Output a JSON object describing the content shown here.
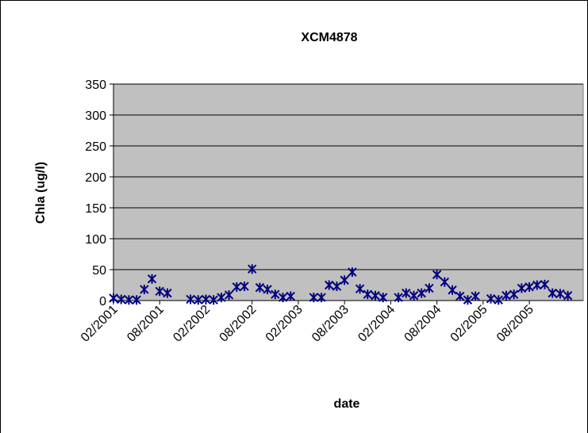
{
  "chart_data": {
    "type": "scatter",
    "title": "XCM4878",
    "xlabel": "date",
    "ylabel": "Chla (ug/l)",
    "x": [
      "2001-02",
      "2001-03",
      "2001-04",
      "2001-05",
      "2001-06",
      "2001-07",
      "2001-08",
      "2001-09",
      "2001-12",
      "2002-01",
      "2002-02",
      "2002-03",
      "2002-04",
      "2002-05",
      "2002-06",
      "2002-07",
      "2002-08",
      "2002-09",
      "2002-10",
      "2002-11",
      "2002-12",
      "2003-01",
      "2003-04",
      "2003-05",
      "2003-06",
      "2003-07",
      "2003-08",
      "2003-09",
      "2003-10",
      "2003-11",
      "2003-12",
      "2004-01",
      "2004-03",
      "2004-04",
      "2004-05",
      "2004-06",
      "2004-07",
      "2004-08",
      "2004-09",
      "2004-10",
      "2004-11",
      "2004-12",
      "2005-01",
      "2005-03",
      "2005-04",
      "2005-05",
      "2005-06",
      "2005-07",
      "2005-08",
      "2005-09",
      "2005-10",
      "2005-11",
      "2005-12",
      "2006-01"
    ],
    "series": [
      {
        "color": "#000080",
        "values": [
          4,
          2,
          1,
          1,
          18,
          35,
          15,
          12,
          2,
          1,
          2,
          1,
          5,
          9,
          22,
          23,
          51,
          21,
          18,
          10,
          5,
          7,
          5,
          5,
          25,
          23,
          33,
          46,
          19,
          10,
          8,
          5,
          5,
          12,
          8,
          12,
          20,
          42,
          30,
          17,
          7,
          1,
          7,
          3,
          1,
          8,
          10,
          20,
          22,
          25,
          26,
          12,
          11,
          8
        ]
      }
    ],
    "xlim": [
      "2001-02",
      "2006-03"
    ],
    "xticks": [
      {
        "value": "2001-02",
        "label": "02/2001"
      },
      {
        "value": "2001-08",
        "label": "08/2001"
      },
      {
        "value": "2002-02",
        "label": "02/2002"
      },
      {
        "value": "2002-08",
        "label": "08/2002"
      },
      {
        "value": "2003-02",
        "label": "02/2003"
      },
      {
        "value": "2003-08",
        "label": "08/2003"
      },
      {
        "value": "2004-02",
        "label": "02/2004"
      },
      {
        "value": "2004-08",
        "label": "08/2004"
      },
      {
        "value": "2005-02",
        "label": "02/2005"
      },
      {
        "value": "2005-08",
        "label": "08/2005"
      }
    ],
    "ylim": [
      0,
      350
    ],
    "yticks": [
      0,
      50,
      100,
      150,
      200,
      250,
      300,
      350
    ],
    "grid": true,
    "plot_background": "#c0c0c0"
  }
}
